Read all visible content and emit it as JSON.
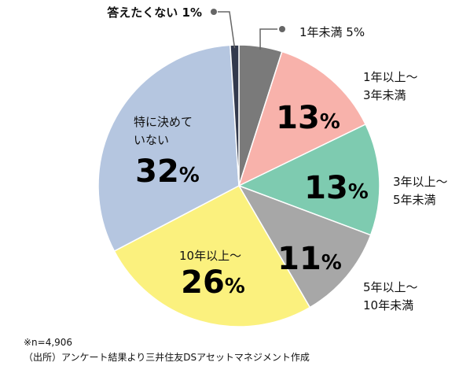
{
  "chart_data": {
    "type": "pie",
    "slices": [
      {
        "label": "1年未満",
        "value": 5,
        "value_text": "5%",
        "color": "#7a7a7a"
      },
      {
        "label": "1年以上～3年未満",
        "value": 13,
        "value_text": "13",
        "color": "#f8b2ab"
      },
      {
        "label": "3年以上～5年未満",
        "value": 13,
        "value_text": "13",
        "color": "#7ecbb0"
      },
      {
        "label": "5年以上～10年未満",
        "value": 11,
        "value_text": "11",
        "color": "#a7a7a7"
      },
      {
        "label": "10年以上～",
        "value": 26,
        "value_text": "26",
        "color": "#fbf17e"
      },
      {
        "label": "特に決めていない",
        "value": 32,
        "value_text": "32",
        "color": "#b5c6e0"
      },
      {
        "label": "答えたくない",
        "value": 1,
        "value_text": "1%",
        "color": "#333a4d"
      }
    ],
    "percent_sign": "%",
    "label_lines": {
      "s1": [
        "1年以上～",
        "3年未満"
      ],
      "s2": [
        "3年以上～",
        "5年未満"
      ],
      "s3": [
        "5年以上～",
        "10年未満"
      ],
      "s4": [
        "10年以上～"
      ],
      "s5": [
        "特に決めて",
        "いない"
      ]
    }
  },
  "notes": {
    "sample": "※n=4,906",
    "source": "（出所）アンケート結果より三井住友DSアセットマネジメント作成"
  }
}
